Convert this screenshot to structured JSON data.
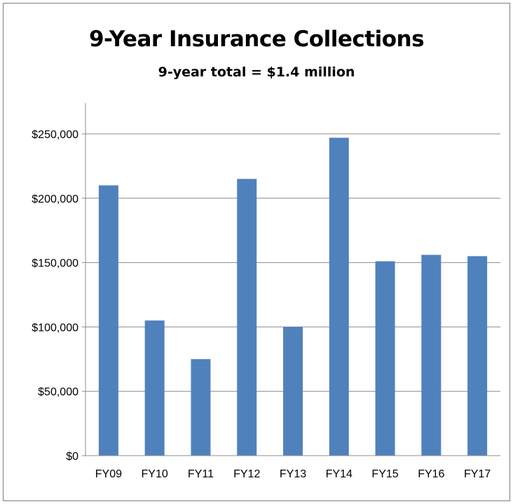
{
  "chart_data": {
    "type": "bar",
    "title": "9-Year  Insurance Collections",
    "subtitle": "9-year total = $1.4 million",
    "xlabel": "",
    "ylabel": "",
    "categories": [
      "FY09",
      "FY10",
      "FY11",
      "FY12",
      "FY13",
      "FY14",
      "FY15",
      "FY16",
      "FY17"
    ],
    "values": [
      210000,
      105000,
      75000,
      215000,
      100000,
      247000,
      151000,
      156000,
      155000
    ],
    "ylim": [
      0,
      250000
    ],
    "yticks": [
      0,
      50000,
      100000,
      150000,
      200000,
      250000
    ],
    "ytick_labels": [
      "$0",
      "$50,000",
      "$100,000",
      "$150,000",
      "$200,000",
      "$250,000"
    ],
    "grid": true,
    "legend": "none",
    "colors": {
      "bar": "#4f81bd",
      "grid": "#8c8c8c",
      "axis": "#8c8c8c"
    }
  }
}
